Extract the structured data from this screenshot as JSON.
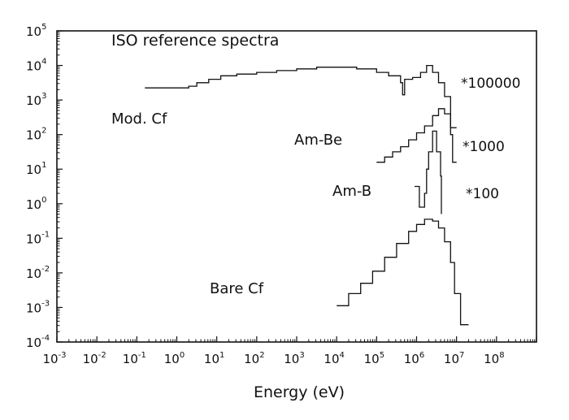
{
  "chart_data": {
    "type": "line",
    "title": "ISO reference spectra",
    "xlabel": "Energy (eV)",
    "ylabel": "",
    "xscale": "log",
    "yscale": "log",
    "xlim_exp": [
      -3,
      9
    ],
    "ylim_exp": [
      -4,
      5
    ],
    "x_tick_exponents": [
      "-3",
      "-2",
      "-1",
      "0",
      "1",
      "2",
      "3",
      "4",
      "5",
      "6",
      "7",
      "8"
    ],
    "y_tick_exponents": [
      "5",
      "4",
      "3",
      "2",
      "1",
      "0",
      "-1",
      "-2",
      "-3",
      "-4"
    ],
    "tick_base": "10",
    "series": [
      {
        "name": "Mod. Cf",
        "scale_label": "*100000",
        "points_log": [
          [
            -0.8,
            3.35
          ],
          [
            0.1,
            3.35
          ],
          [
            0.3,
            3.4
          ],
          [
            0.5,
            3.5
          ],
          [
            0.8,
            3.6
          ],
          [
            1.1,
            3.7
          ],
          [
            1.5,
            3.75
          ],
          [
            2.0,
            3.8
          ],
          [
            2.5,
            3.85
          ],
          [
            3.0,
            3.9
          ],
          [
            3.5,
            3.95
          ],
          [
            4.0,
            3.95
          ],
          [
            4.5,
            3.9
          ],
          [
            5.0,
            3.8
          ],
          [
            5.3,
            3.7
          ],
          [
            5.6,
            3.5
          ],
          [
            5.65,
            3.15
          ],
          [
            5.7,
            3.6
          ],
          [
            5.9,
            3.65
          ],
          [
            6.1,
            3.8
          ],
          [
            6.25,
            4.0
          ],
          [
            6.4,
            3.8
          ],
          [
            6.55,
            3.5
          ],
          [
            6.7,
            3.1
          ],
          [
            6.85,
            2.2
          ],
          [
            7.0,
            2.2
          ]
        ]
      },
      {
        "name": "Am-Be",
        "scale_label": "*1000",
        "points_log": [
          [
            5.0,
            1.2
          ],
          [
            5.2,
            1.35
          ],
          [
            5.4,
            1.5
          ],
          [
            5.6,
            1.65
          ],
          [
            5.8,
            1.85
          ],
          [
            6.0,
            2.05
          ],
          [
            6.2,
            2.25
          ],
          [
            6.4,
            2.55
          ],
          [
            6.55,
            2.75
          ],
          [
            6.7,
            2.6
          ],
          [
            6.85,
            2.0
          ],
          [
            6.9,
            1.2
          ],
          [
            7.0,
            1.2
          ]
        ]
      },
      {
        "name": "Am-B",
        "scale_label": "*100",
        "points_log": [
          [
            5.95,
            0.5
          ],
          [
            6.05,
            0.5
          ],
          [
            6.07,
            -0.1
          ],
          [
            6.2,
            0.3
          ],
          [
            6.25,
            1.0
          ],
          [
            6.3,
            1.5
          ],
          [
            6.4,
            2.1
          ],
          [
            6.5,
            1.5
          ],
          [
            6.6,
            0.8
          ],
          [
            6.62,
            -0.3
          ]
        ]
      },
      {
        "name": "Bare Cf",
        "scale_label": "",
        "points_log": [
          [
            4.0,
            -2.95
          ],
          [
            4.3,
            -2.6
          ],
          [
            4.6,
            -2.3
          ],
          [
            4.9,
            -1.95
          ],
          [
            5.2,
            -1.55
          ],
          [
            5.5,
            -1.15
          ],
          [
            5.8,
            -0.8
          ],
          [
            6.0,
            -0.6
          ],
          [
            6.2,
            -0.45
          ],
          [
            6.4,
            -0.5
          ],
          [
            6.55,
            -0.7
          ],
          [
            6.7,
            -1.1
          ],
          [
            6.85,
            -1.7
          ],
          [
            6.95,
            -2.6
          ],
          [
            7.05,
            -2.6
          ],
          [
            7.1,
            -3.5
          ],
          [
            7.3,
            -3.5
          ]
        ]
      }
    ],
    "series_labels": [
      "Mod. Cf",
      "Am-Be",
      "Am-B",
      "Bare Cf"
    ],
    "scale_labels": [
      "*100000",
      "*1000",
      "*100"
    ]
  }
}
